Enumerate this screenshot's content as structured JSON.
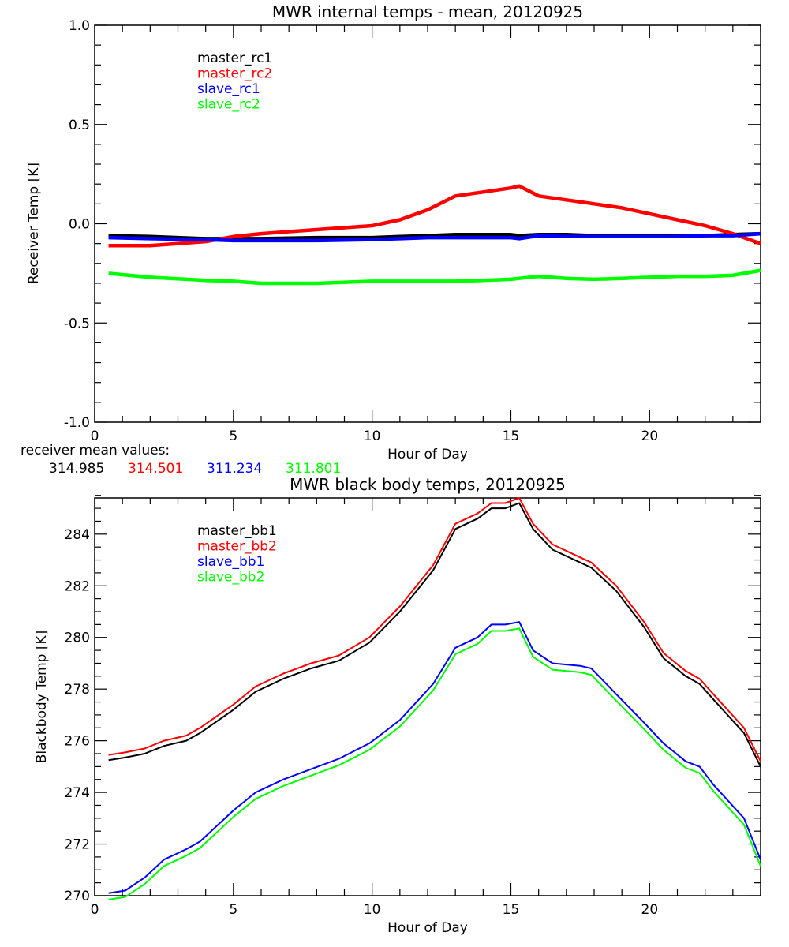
{
  "chart_data": [
    {
      "type": "line",
      "title": "MWR internal temps - mean, 20120925",
      "xlabel": "Hour of Day",
      "ylabel": "Receiver Temp [K]",
      "xlim": [
        0,
        24
      ],
      "ylim": [
        -1.0,
        1.0
      ],
      "xticks": [
        "0",
        "5",
        "10",
        "15",
        "20"
      ],
      "xtick_values": [
        0,
        5,
        10,
        15,
        20
      ],
      "yticks": [
        "-1.0",
        "-0.5",
        "0.0",
        "0.5",
        "1.0"
      ],
      "ytick_values": [
        -1.0,
        -0.5,
        0.0,
        0.5,
        1.0
      ],
      "grid": false,
      "legend_position": "top-left",
      "x": [
        0.5,
        2,
        4,
        5,
        6,
        8,
        10,
        11,
        12,
        13,
        14,
        15,
        15.3,
        16,
        17,
        18,
        19,
        20,
        21,
        22,
        23,
        24
      ],
      "series": [
        {
          "name": "master_rc1",
          "color": "#000000",
          "values": [
            -0.06,
            -0.065,
            -0.075,
            -0.075,
            -0.075,
            -0.07,
            -0.07,
            -0.065,
            -0.06,
            -0.055,
            -0.055,
            -0.055,
            -0.06,
            -0.055,
            -0.055,
            -0.06,
            -0.06,
            -0.06,
            -0.06,
            -0.06,
            -0.055,
            -0.05
          ]
        },
        {
          "name": "master_rc2",
          "color": "#ff0000",
          "values": [
            -0.11,
            -0.11,
            -0.09,
            -0.065,
            -0.05,
            -0.03,
            -0.01,
            0.02,
            0.07,
            0.14,
            0.16,
            0.18,
            0.19,
            0.14,
            0.12,
            0.1,
            0.08,
            0.05,
            0.02,
            -0.01,
            -0.05,
            -0.1
          ]
        },
        {
          "name": "slave_rc1",
          "color": "#0000ff",
          "values": [
            -0.07,
            -0.075,
            -0.08,
            -0.085,
            -0.085,
            -0.085,
            -0.08,
            -0.075,
            -0.07,
            -0.07,
            -0.07,
            -0.07,
            -0.075,
            -0.06,
            -0.065,
            -0.065,
            -0.065,
            -0.065,
            -0.065,
            -0.06,
            -0.06,
            -0.05
          ]
        },
        {
          "name": "slave_rc2",
          "color": "#00ff00",
          "values": [
            -0.25,
            -0.27,
            -0.285,
            -0.29,
            -0.3,
            -0.3,
            -0.29,
            -0.29,
            -0.29,
            -0.29,
            -0.285,
            -0.28,
            -0.275,
            -0.265,
            -0.275,
            -0.28,
            -0.275,
            -0.27,
            -0.265,
            -0.265,
            -0.26,
            -0.235
          ]
        }
      ],
      "annotation": {
        "label": "receiver mean values:",
        "values": [
          {
            "text": "314.985",
            "color": "#000000"
          },
          {
            "text": "314.501",
            "color": "#ff0000"
          },
          {
            "text": "311.234",
            "color": "#0000ff"
          },
          {
            "text": "311.801",
            "color": "#00ff00"
          }
        ]
      }
    },
    {
      "type": "line",
      "title": "MWR black body temps, 20120925",
      "xlabel": "Hour of Day",
      "ylabel": "Blackbody Temp [K]",
      "xlim": [
        0,
        24
      ],
      "ylim": [
        270,
        285.4
      ],
      "xticks": [
        "0",
        "5",
        "10",
        "15",
        "20"
      ],
      "xtick_values": [
        0,
        5,
        10,
        15,
        20
      ],
      "yticks": [
        "270",
        "272",
        "274",
        "276",
        "278",
        "280",
        "282",
        "284"
      ],
      "ytick_values": [
        270,
        272,
        274,
        276,
        278,
        280,
        282,
        284
      ],
      "grid": false,
      "legend_position": "top-left",
      "x": [
        0.5,
        1.1,
        1.8,
        2.5,
        3.3,
        3.8,
        5,
        5.8,
        6.8,
        7.8,
        8.8,
        9.9,
        11,
        12.2,
        13,
        13.8,
        14.3,
        14.8,
        15.3,
        15.8,
        16.5,
        17.5,
        17.9,
        18.8,
        19.8,
        20.5,
        21.3,
        21.8,
        22.3,
        23.4,
        24
      ],
      "series": [
        {
          "name": "master_bb1",
          "color": "#000000",
          "values": [
            275.25,
            275.35,
            275.5,
            275.8,
            276.0,
            276.3,
            277.2,
            277.9,
            278.4,
            278.8,
            279.1,
            279.8,
            281.0,
            282.6,
            284.2,
            284.6,
            285.0,
            285.0,
            285.2,
            284.2,
            283.4,
            282.9,
            282.7,
            281.8,
            280.4,
            279.2,
            278.5,
            278.2,
            277.6,
            276.3,
            275.0
          ]
        },
        {
          "name": "master_bb2",
          "color": "#ff0000",
          "values": [
            275.45,
            275.55,
            275.7,
            276.0,
            276.2,
            276.5,
            277.4,
            278.1,
            278.6,
            279.0,
            279.3,
            280.0,
            281.2,
            282.8,
            284.4,
            284.8,
            285.2,
            285.2,
            285.4,
            284.4,
            283.6,
            283.1,
            282.9,
            282.0,
            280.6,
            279.4,
            278.7,
            278.4,
            277.8,
            276.5,
            275.2
          ]
        },
        {
          "name": "slave_bb1",
          "color": "#0000ff",
          "values": [
            270.1,
            270.2,
            270.7,
            271.4,
            271.8,
            272.1,
            273.3,
            274.0,
            274.5,
            274.9,
            275.3,
            275.9,
            276.8,
            278.2,
            279.6,
            280.0,
            280.5,
            280.5,
            280.6,
            279.5,
            279.0,
            278.9,
            278.8,
            277.8,
            276.7,
            275.9,
            275.2,
            275.0,
            274.3,
            273.0,
            271.4
          ]
        },
        {
          "name": "slave_bb2",
          "color": "#00ff00",
          "values": [
            269.85,
            269.95,
            270.45,
            271.15,
            271.55,
            271.85,
            273.05,
            273.75,
            274.25,
            274.65,
            275.05,
            275.65,
            276.55,
            277.95,
            279.35,
            279.75,
            280.25,
            280.25,
            280.35,
            279.25,
            278.75,
            278.65,
            278.55,
            277.55,
            276.45,
            275.65,
            274.95,
            274.75,
            274.05,
            272.75,
            271.15
          ]
        }
      ]
    }
  ]
}
